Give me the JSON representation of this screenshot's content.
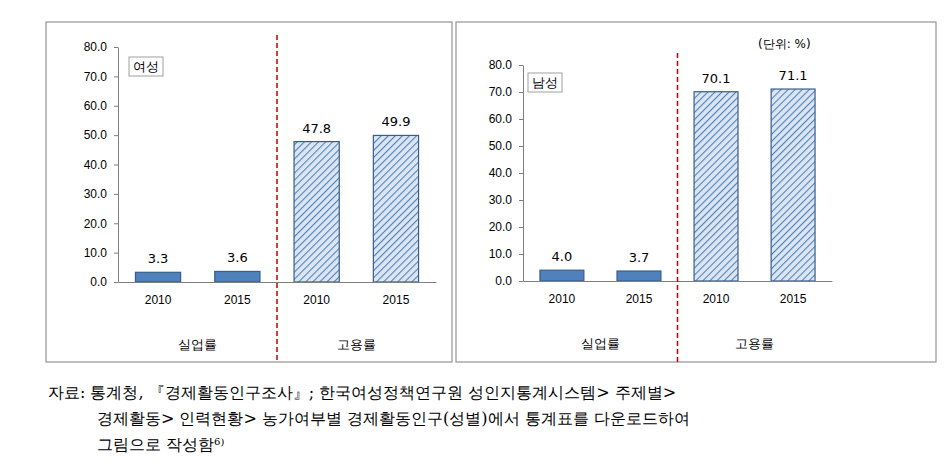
{
  "chart_data": [
    {
      "type": "bar",
      "title": "여성",
      "categories": [
        "2010",
        "2015",
        "2010",
        "2015"
      ],
      "group_labels": [
        "실업률",
        "고용률"
      ],
      "values": [
        3.3,
        3.6,
        47.8,
        49.9
      ],
      "ylim": [
        0,
        80
      ],
      "yticks": [
        {
          "value": 0,
          "label": "0.0"
        },
        {
          "value": 10,
          "label": "10.0"
        },
        {
          "value": 20,
          "label": "20.0"
        },
        {
          "value": 30,
          "label": "30.0"
        },
        {
          "value": 40,
          "label": "40.0"
        },
        {
          "value": 50,
          "label": "50.0"
        },
        {
          "value": 60,
          "label": "60.0"
        },
        {
          "value": 70,
          "label": "70.0"
        },
        {
          "value": 80,
          "label": "80.0"
        }
      ],
      "data_labels": true,
      "grid": false
    },
    {
      "type": "bar",
      "title": "남성",
      "subtitle": "(단위: %)",
      "categories": [
        "2010",
        "2015",
        "2010",
        "2015"
      ],
      "group_labels": [
        "실업률",
        "고용률"
      ],
      "values": [
        4.0,
        3.7,
        70.1,
        71.1
      ],
      "value_labels": [
        "4.0",
        "3.7",
        "70.1",
        "71.1"
      ],
      "ylim": [
        0,
        80
      ],
      "yticks": [
        {
          "value": 0,
          "label": "0.0"
        },
        {
          "value": 10,
          "label": "10.0"
        },
        {
          "value": 20,
          "label": "20.0"
        },
        {
          "value": 30,
          "label": "30.0"
        },
        {
          "value": 40,
          "label": "40.0"
        },
        {
          "value": 50,
          "label": "50.0"
        },
        {
          "value": 60,
          "label": "60.0"
        },
        {
          "value": 70,
          "label": "70.0"
        },
        {
          "value": 80,
          "label": "80.0"
        }
      ],
      "data_labels": true,
      "grid": false
    }
  ],
  "source_lines": [
    "자료: 통계청, 『경제활동인구조사』; 한국여성정책연구원 성인지통계시스템> 주제별>",
    "경제활동> 인력현황> 농가여부별 경제활동인구(성별)에서 통계표를 다운로드하여",
    "그림으로 작성함"
  ],
  "footnote_mark": "6)"
}
